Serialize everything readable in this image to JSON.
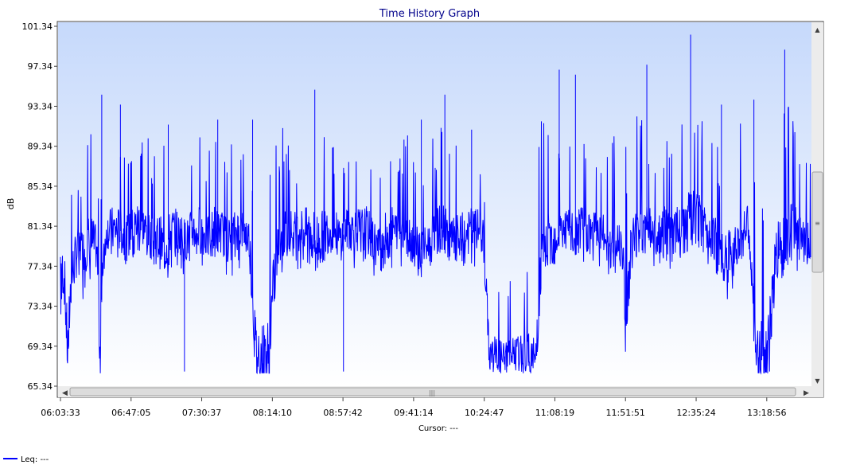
{
  "colors": {
    "series": "#0000ff",
    "title": "#00008b",
    "plot_top": "#c6d9fb",
    "plot_bottom": "#ffffff",
    "scrollbar_track": "#ececec",
    "scrollbar_thumb": "#dcdcdc",
    "frame": "#404040"
  },
  "chart_data": {
    "type": "line",
    "title": "Time History Graph",
    "xlabel": "",
    "ylabel": "dB",
    "ylim": [
      65.34,
      101.34
    ],
    "yticks": [
      "101.34",
      "97.34",
      "93.34",
      "89.34",
      "85.34",
      "81.34",
      "77.34",
      "73.34",
      "69.34",
      "65.34"
    ],
    "xticks": [
      "06:03:33",
      "06:47:05",
      "07:30:37",
      "08:14:10",
      "08:57:42",
      "09:41:14",
      "10:24:47",
      "11:08:19",
      "11:51:51",
      "12:35:24",
      "13:18:56"
    ],
    "xlim": [
      "06:03:33",
      "13:46:00"
    ],
    "grid": false,
    "cursor_text": "Cursor: ---",
    "legend": {
      "placement": "bottom-left",
      "entries": [
        {
          "label": "Leq: ---",
          "icon": "line-swatch-icon"
        }
      ]
    },
    "series": [
      {
        "x": [
          "06:03:33",
          "06:06:00",
          "06:08:00",
          "06:10:00",
          "06:14:00",
          "06:18:00",
          "06:22:00",
          "06:26:00",
          "06:28:00",
          "06:30:00",
          "06:32:00",
          "06:36:00",
          "06:40:00",
          "06:44:00",
          "06:48:00",
          "06:52:00",
          "06:56:00",
          "07:00:00",
          "07:04:00",
          "07:08:00",
          "07:12:00",
          "07:16:00",
          "07:20:00",
          "07:22:00",
          "07:25:00",
          "07:30:00",
          "07:34:00",
          "07:38:00",
          "07:42:00",
          "07:46:00",
          "07:48:00",
          "07:52:00",
          "07:56:00",
          "08:00:00",
          "08:04:00",
          "08:08:00",
          "08:12:00",
          "08:16:00",
          "08:20:00",
          "08:24:00",
          "08:28:00",
          "08:32:00",
          "08:36:00",
          "08:40:00",
          "08:44:00",
          "08:48:00",
          "08:52:00",
          "08:56:00",
          "09:00:00",
          "09:04:00",
          "09:08:00",
          "09:12:00",
          "09:16:00",
          "09:20:00",
          "09:24:00",
          "09:28:00",
          "09:32:00",
          "09:36:00",
          "09:40:00",
          "09:44:00",
          "09:48:00",
          "09:52:00",
          "09:56:00",
          "10:00:00",
          "10:04:00",
          "10:08:00",
          "10:12:00",
          "10:16:00",
          "10:20:00",
          "10:24:00",
          "10:28:00",
          "10:32:00",
          "10:36:00",
          "10:40:00",
          "10:44:00",
          "10:48:00",
          "10:52:00",
          "10:56:00",
          "11:00:00",
          "11:04:00",
          "11:08:00",
          "11:12:00",
          "11:16:00",
          "11:20:00",
          "11:24:00",
          "11:28:00",
          "11:32:00",
          "11:36:00",
          "11:40:00",
          "11:44:00",
          "11:48:00",
          "11:50:00",
          "11:52:00",
          "11:56:00",
          "12:00:00",
          "12:04:00",
          "12:08:00",
          "12:12:00",
          "12:16:00",
          "12:20:00",
          "12:24:00",
          "12:28:00",
          "12:32:00",
          "12:36:00",
          "12:40:00",
          "12:44:00",
          "12:48:00",
          "12:52:00",
          "12:56:00",
          "13:00:00",
          "13:04:00",
          "13:08:00",
          "13:12:00",
          "13:16:00",
          "13:20:00",
          "13:24:00",
          "13:28:00",
          "13:32:00",
          "13:36:00",
          "13:40:00",
          "13:44:00",
          "13:46:00"
        ],
        "mean": [
          78,
          76,
          68.5,
          76,
          79,
          79,
          80,
          79,
          68.5,
          79,
          81,
          81,
          81,
          80,
          81,
          82,
          81,
          80,
          80,
          79,
          81,
          81,
          80,
          80,
          81,
          81,
          80,
          81,
          81,
          80,
          80,
          81,
          81,
          80,
          68.5,
          68.5,
          68.5,
          78,
          80,
          81,
          81,
          81,
          81,
          80,
          80,
          81,
          81,
          80,
          81,
          81,
          81,
          81,
          80,
          79,
          80,
          81,
          81,
          81,
          80,
          79,
          79,
          80,
          81,
          81,
          80,
          80,
          80,
          81,
          81,
          81,
          68.5,
          68.5,
          68,
          68.5,
          68.5,
          68.5,
          68.5,
          68,
          77,
          80,
          80,
          81,
          81,
          80,
          81,
          81,
          81,
          81,
          80,
          79,
          80,
          80,
          71,
          80,
          81,
          81,
          81,
          80,
          81,
          81,
          81,
          81,
          82,
          82,
          81,
          81,
          80,
          78,
          78,
          80,
          81,
          81,
          68.5,
          68.5,
          68.5,
          78,
          80,
          81,
          81,
          80,
          80,
          80
        ],
        "top": [
          84,
          86,
          86,
          87,
          87,
          87,
          93,
          87,
          88,
          88,
          90,
          92,
          91,
          90,
          91,
          90,
          91,
          89,
          92,
          90,
          90,
          89,
          89,
          89,
          90,
          91,
          88,
          92,
          90,
          89,
          90,
          89,
          89,
          89,
          88,
          86,
          89,
          90,
          92,
          90,
          88,
          90,
          90,
          94,
          92,
          91,
          90,
          89,
          89,
          90,
          90,
          91,
          89,
          89,
          92,
          91,
          88,
          92,
          89,
          90,
          88,
          90,
          91,
          92,
          89,
          90,
          92,
          90,
          89,
          90,
          78,
          78,
          78,
          78,
          78,
          78,
          80,
          80,
          96,
          92,
          93,
          89,
          90,
          92,
          90,
          91,
          89,
          88,
          90,
          90,
          92,
          94,
          92,
          96,
          92,
          93,
          89,
          90,
          91,
          91,
          90,
          93,
          96,
          94,
          93,
          92,
          90,
          88,
          93,
          92,
          93,
          90,
          86,
          87,
          90,
          93,
          92,
          94,
          93,
          90,
          90,
          88
        ],
        "bottom": [
          72,
          70,
          67,
          70,
          74,
          74,
          76,
          75,
          67,
          76,
          79,
          78,
          78,
          77,
          78,
          78,
          78,
          77,
          76,
          75,
          77,
          77,
          76,
          76,
          77,
          77,
          76,
          77,
          77,
          76,
          76,
          77,
          77,
          76,
          67,
          67,
          67,
          74,
          76,
          77,
          77,
          77,
          77,
          76,
          76,
          77,
          77,
          76,
          77,
          77,
          77,
          77,
          76,
          75,
          76,
          77,
          77,
          77,
          76,
          75,
          75,
          76,
          77,
          77,
          76,
          76,
          76,
          77,
          77,
          77,
          67,
          67,
          67,
          67,
          67,
          67,
          67,
          67,
          73,
          77,
          77,
          77,
          77,
          77,
          77,
          77,
          77,
          77,
          77,
          75,
          77,
          76,
          70,
          76,
          77,
          77,
          77,
          77,
          77,
          77,
          77,
          77,
          78,
          78,
          77,
          77,
          76,
          74,
          74,
          76,
          77,
          77,
          67,
          67,
          67,
          74,
          76,
          77,
          77,
          76,
          76,
          76
        ],
        "spikes": [
          {
            "x": "06:29:00",
            "y": 94.5
          },
          {
            "x": "06:40:30",
            "y": 93.5
          },
          {
            "x": "07:10:00",
            "y": 91.5
          },
          {
            "x": "07:20:00",
            "y": 66.8
          },
          {
            "x": "07:40:30",
            "y": 92
          },
          {
            "x": "08:02:00",
            "y": 92
          },
          {
            "x": "08:40:20",
            "y": 95
          },
          {
            "x": "08:58:00",
            "y": 66.8
          },
          {
            "x": "09:46:00",
            "y": 92
          },
          {
            "x": "10:00:30",
            "y": 94.5
          },
          {
            "x": "10:17:00",
            "y": 91
          },
          {
            "x": "11:11:00",
            "y": 97
          },
          {
            "x": "11:21:00",
            "y": 96.5
          },
          {
            "x": "12:05:00",
            "y": 97.5
          },
          {
            "x": "12:32:00",
            "y": 100.5
          },
          {
            "x": "12:51:00",
            "y": 93.5
          },
          {
            "x": "13:11:00",
            "y": 94
          },
          {
            "x": "13:30:00",
            "y": 99
          }
        ]
      }
    ]
  }
}
